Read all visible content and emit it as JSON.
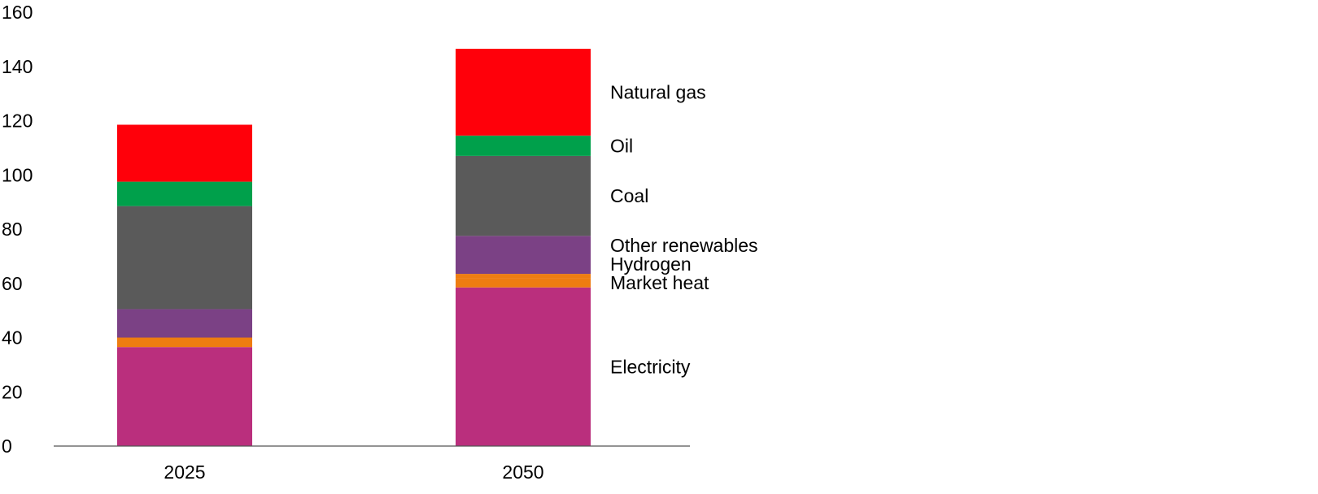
{
  "chart_data": {
    "type": "bar",
    "stacked": true,
    "categories": [
      "2025",
      "2050"
    ],
    "series": [
      {
        "name": "Electricity",
        "color": "#BA2F7D",
        "values": [
          36.5,
          58.5
        ]
      },
      {
        "name": "Market heat",
        "color": "#EE7D11",
        "values": [
          3.5,
          3.5
        ]
      },
      {
        "name": "Hydrogen",
        "color": "#EE7D11",
        "values": [
          0,
          1.5
        ]
      },
      {
        "name": "Other renewables",
        "color": "#7B4185",
        "values": [
          10.5,
          14
        ]
      },
      {
        "name": "Coal",
        "color": "#5A5A5A",
        "values": [
          38,
          29.5
        ]
      },
      {
        "name": "Oil",
        "color": "#00A04B",
        "values": [
          9,
          7.5
        ]
      },
      {
        "name": "Natural gas",
        "color": "#FF000A",
        "values": [
          21,
          32
        ]
      }
    ],
    "ylim": [
      0,
      160
    ],
    "yticks": [
      "0",
      "20",
      "40",
      "60",
      "80",
      "100",
      "120",
      "140",
      "160"
    ],
    "grid": false,
    "legend": "labels to the right of the 2050 bar"
  }
}
